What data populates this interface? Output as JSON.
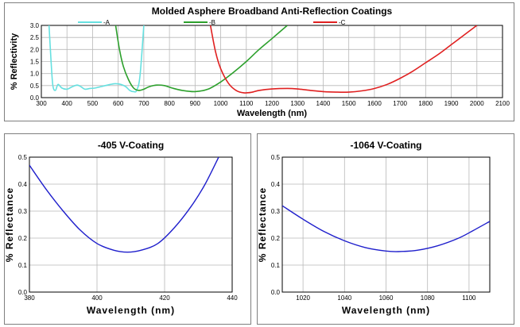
{
  "chart_data": [
    {
      "type": "line",
      "title": "Molded Asphere Broadband Anti-Reflection Coatings",
      "xlabel": "Wavelength (nm)",
      "ylabel": "% Reflectivity",
      "xlim": [
        300,
        2100
      ],
      "ylim": [
        0,
        3.0
      ],
      "x_ticks": [
        "300",
        "400",
        "500",
        "600",
        "700",
        "800",
        "900",
        "1000",
        "1100",
        "1200",
        "1300",
        "1400",
        "1500",
        "1600",
        "1700",
        "1800",
        "1900",
        "2000",
        "2100"
      ],
      "y_ticks": [
        "0.0",
        "0.5",
        "1.0",
        "1.5",
        "2.0",
        "2.5",
        "3.0"
      ],
      "grid": true,
      "legend": "top",
      "series": [
        {
          "name": "-A",
          "color": "#66e0e0",
          "x": [
            330,
            338,
            345,
            355,
            365,
            380,
            400,
            420,
            440,
            455,
            470,
            490,
            510,
            530,
            550,
            570,
            590,
            610,
            630,
            645,
            660,
            672,
            685,
            700
          ],
          "y": [
            3.0,
            1.5,
            0.5,
            0.3,
            0.55,
            0.4,
            0.35,
            0.45,
            0.52,
            0.45,
            0.35,
            0.38,
            0.4,
            0.45,
            0.5,
            0.55,
            0.58,
            0.55,
            0.45,
            0.3,
            0.25,
            0.3,
            0.9,
            3.0
          ]
        },
        {
          "name": "-B",
          "color": "#2ca02c",
          "x": [
            590,
            605,
            620,
            640,
            660,
            680,
            700,
            720,
            750,
            780,
            810,
            850,
            900,
            950,
            1000,
            1050,
            1100,
            1150,
            1200,
            1260
          ],
          "y": [
            3.0,
            2.0,
            1.3,
            0.75,
            0.4,
            0.3,
            0.35,
            0.45,
            0.52,
            0.5,
            0.4,
            0.3,
            0.25,
            0.35,
            0.65,
            1.05,
            1.5,
            2.0,
            2.45,
            3.0
          ]
        },
        {
          "name": "-C",
          "color": "#e02020",
          "x": [
            960,
            980,
            1000,
            1030,
            1060,
            1090,
            1120,
            1150,
            1200,
            1260,
            1300,
            1350,
            1400,
            1450,
            1500,
            1550,
            1600,
            1650,
            1700,
            1750,
            1800,
            1850,
            1900,
            1950,
            2000
          ],
          "y": [
            3.0,
            1.9,
            1.2,
            0.6,
            0.3,
            0.2,
            0.22,
            0.3,
            0.36,
            0.38,
            0.36,
            0.3,
            0.25,
            0.23,
            0.23,
            0.28,
            0.38,
            0.55,
            0.8,
            1.1,
            1.45,
            1.8,
            2.2,
            2.6,
            3.0
          ]
        }
      ]
    },
    {
      "type": "line",
      "title": "-405 V-Coating",
      "xlabel": "Wavelength (nm)",
      "ylabel": "% Reflectance",
      "xlim": [
        380,
        440
      ],
      "ylim": [
        0,
        0.5
      ],
      "x_ticks": [
        "380",
        "400",
        "420",
        "440"
      ],
      "y_ticks": [
        "0.0",
        "0.1",
        "0.2",
        "0.3",
        "0.4",
        "0.5"
      ],
      "grid": true,
      "series": [
        {
          "color": "#1f1fcc",
          "x": [
            380,
            385,
            390,
            395,
            400,
            405,
            409,
            413,
            418,
            423,
            428,
            432,
            436
          ],
          "y": [
            0.47,
            0.38,
            0.3,
            0.23,
            0.18,
            0.155,
            0.148,
            0.155,
            0.18,
            0.24,
            0.32,
            0.4,
            0.5
          ]
        }
      ]
    },
    {
      "type": "line",
      "title": "-1064 V-Coating",
      "xlabel": "Wavelength (nm)",
      "ylabel": "% Reflectance",
      "xlim": [
        1010,
        1110
      ],
      "ylim": [
        0,
        0.5
      ],
      "x_ticks": [
        "1020",
        "1040",
        "1060",
        "1080",
        "1100"
      ],
      "y_ticks": [
        "0.0",
        "0.1",
        "0.2",
        "0.3",
        "0.4",
        "0.5"
      ],
      "grid": true,
      "series": [
        {
          "color": "#1f1fcc",
          "x": [
            1010,
            1020,
            1030,
            1040,
            1050,
            1060,
            1066,
            1075,
            1085,
            1095,
            1102,
            1110
          ],
          "y": [
            0.32,
            0.27,
            0.225,
            0.19,
            0.165,
            0.152,
            0.15,
            0.155,
            0.172,
            0.2,
            0.228,
            0.262
          ]
        }
      ]
    }
  ]
}
